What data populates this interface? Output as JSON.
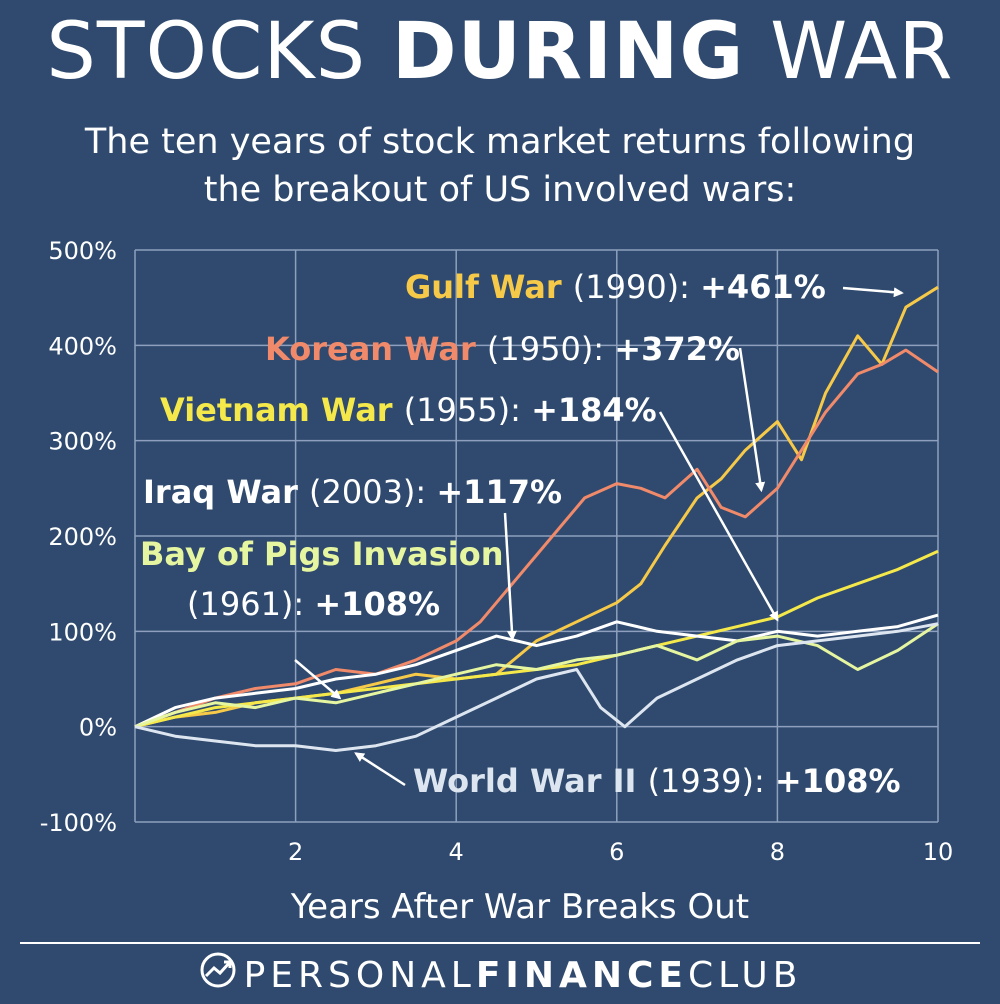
{
  "header": {
    "title_light": "STOCKS",
    "title_bold": "DURING",
    "title_light2": "WAR",
    "subtitle_line1": "The ten years of stock market returns following",
    "subtitle_line2": "the breakout of US involved wars:"
  },
  "footer": {
    "brand_light": "PERSONAL",
    "brand_bold": "FINANCE",
    "brand_light2": "CLUB",
    "logo_icon": "trend-up-circle-icon"
  },
  "colors": {
    "background": "#2f4a6e",
    "grid": "#8ea0bd",
    "gulf": "#f7c948",
    "korean": "#f08a6a",
    "vietnam": "#f5e84a",
    "iraq": "#ffffff",
    "bay_of_pigs": "#e6f5a0",
    "ww2": "#dde6f0"
  },
  "chart_data": {
    "type": "line",
    "title": "",
    "xlabel": "Years After War Breaks Out",
    "ylabel": "",
    "xlim": [
      0,
      10
    ],
    "ylim": [
      -100,
      500
    ],
    "x_ticks": [
      2,
      4,
      6,
      8,
      10
    ],
    "y_ticks": [
      -100,
      0,
      100,
      200,
      300,
      400,
      500
    ],
    "y_tick_labels": [
      "-100%",
      "0%",
      "100%",
      "200%",
      "300%",
      "400%",
      "500%"
    ],
    "grid": true,
    "series": [
      {
        "key": "gulf",
        "label_name": "Gulf War",
        "label_year": "(1990):",
        "label_value": "+461%",
        "x": [
          0,
          0.5,
          1,
          1.5,
          2,
          2.5,
          3,
          3.5,
          4,
          4.5,
          5,
          5.5,
          6,
          6.3,
          6.6,
          7,
          7.3,
          7.6,
          8,
          8.3,
          8.6,
          9,
          9.3,
          9.6,
          10
        ],
        "y": [
          0,
          10,
          15,
          25,
          30,
          35,
          45,
          55,
          50,
          55,
          90,
          110,
          130,
          150,
          190,
          240,
          260,
          290,
          320,
          280,
          350,
          410,
          380,
          440,
          461
        ]
      },
      {
        "key": "korean",
        "label_name": "Korean War",
        "label_year": "(1950):",
        "label_value": "+372%",
        "x": [
          0,
          0.5,
          1,
          1.5,
          2,
          2.5,
          3,
          3.5,
          4,
          4.3,
          4.6,
          5,
          5.3,
          5.6,
          6,
          6.3,
          6.6,
          7,
          7.3,
          7.6,
          8,
          8.3,
          8.6,
          9,
          9.3,
          9.6,
          10
        ],
        "y": [
          0,
          15,
          30,
          40,
          45,
          60,
          55,
          70,
          90,
          110,
          140,
          180,
          210,
          240,
          255,
          250,
          240,
          270,
          230,
          220,
          250,
          290,
          330,
          370,
          380,
          395,
          372
        ]
      },
      {
        "key": "vietnam",
        "label_name": "Vietnam War",
        "label_year": "(1955):",
        "label_value": "+184%",
        "x": [
          0,
          0.5,
          1,
          1.5,
          2,
          2.5,
          3,
          3.5,
          4,
          4.5,
          5,
          5.5,
          6,
          6.5,
          7,
          7.5,
          8,
          8.5,
          9,
          9.5,
          10
        ],
        "y": [
          0,
          10,
          20,
          25,
          30,
          35,
          40,
          45,
          50,
          55,
          60,
          65,
          75,
          85,
          95,
          105,
          115,
          135,
          150,
          165,
          184
        ]
      },
      {
        "key": "iraq",
        "label_name": "Iraq War",
        "label_year": "(2003):",
        "label_value": "+117%",
        "x": [
          0,
          0.5,
          1,
          1.5,
          2,
          2.5,
          3,
          3.5,
          4,
          4.5,
          5,
          5.5,
          6,
          6.5,
          7,
          7.5,
          8,
          8.5,
          9,
          9.5,
          10
        ],
        "y": [
          0,
          20,
          30,
          35,
          40,
          50,
          55,
          65,
          80,
          95,
          85,
          95,
          110,
          100,
          95,
          90,
          100,
          95,
          100,
          105,
          117
        ]
      },
      {
        "key": "bay_of_pigs",
        "label_name": "Bay of Pigs Invasion",
        "label_year": "(1961):",
        "label_value": "+108%",
        "x": [
          0,
          0.5,
          1,
          1.5,
          2,
          2.5,
          3,
          3.5,
          4,
          4.5,
          5,
          5.5,
          6,
          6.5,
          7,
          7.5,
          8,
          8.5,
          9,
          9.5,
          10
        ],
        "y": [
          0,
          15,
          25,
          20,
          30,
          25,
          35,
          45,
          55,
          65,
          60,
          70,
          75,
          85,
          70,
          90,
          95,
          85,
          60,
          80,
          108
        ]
      },
      {
        "key": "ww2",
        "label_name": "World War II",
        "label_year": "(1939):",
        "label_value": "+108%",
        "x": [
          0,
          0.5,
          1,
          1.5,
          2,
          2.5,
          3,
          3.5,
          4,
          4.5,
          5,
          5.5,
          5.8,
          6.1,
          6.5,
          7,
          7.5,
          8,
          8.5,
          9,
          9.5,
          10
        ],
        "y": [
          0,
          -10,
          -15,
          -20,
          -20,
          -25,
          -20,
          -10,
          10,
          30,
          50,
          60,
          20,
          0,
          30,
          50,
          70,
          85,
          90,
          95,
          100,
          108
        ]
      }
    ]
  }
}
